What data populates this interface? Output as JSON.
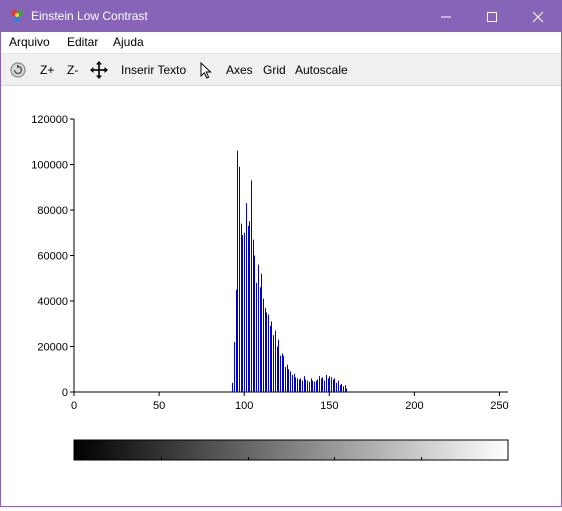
{
  "window": {
    "title": "Einstein Low Contrast",
    "accent_color": "#8764b8",
    "icons": [
      "app-logo-icon",
      "minimize-icon",
      "maximize-icon",
      "close-icon"
    ]
  },
  "menu": {
    "items": [
      "Arquivo",
      "Editar",
      "Ajuda"
    ]
  },
  "toolbar": {
    "reset_icon": "reset-view-icon",
    "zoom_in": "Z+",
    "zoom_out": "Z-",
    "pan_icon": "pan-move-icon",
    "insert_text": "Inserir Texto",
    "pointer_icon": "pointer-arrow-icon",
    "axes": "Axes",
    "grid": "Grid",
    "autoscale": "Autoscale"
  },
  "chart_data": {
    "type": "bar",
    "title": "",
    "xlabel": "",
    "ylabel": "",
    "xlim": [
      0,
      255
    ],
    "ylim": [
      0,
      120000
    ],
    "x_ticks": [
      0,
      50,
      100,
      150,
      200,
      250
    ],
    "y_ticks": [
      0,
      20000,
      40000,
      60000,
      80000,
      100000,
      120000
    ],
    "grid": false,
    "bar_color": "#0000cc",
    "colorbar": {
      "from": "#000000",
      "to": "#ffffff",
      "min": 0,
      "max": 255
    },
    "x": [
      93,
      94,
      95,
      96,
      97,
      98,
      99,
      100,
      101,
      102,
      103,
      104,
      105,
      106,
      107,
      108,
      109,
      110,
      111,
      112,
      113,
      114,
      115,
      116,
      117,
      118,
      119,
      120,
      121,
      122,
      123,
      124,
      125,
      126,
      127,
      128,
      129,
      130,
      131,
      132,
      133,
      134,
      135,
      136,
      137,
      138,
      139,
      140,
      141,
      142,
      143,
      144,
      145,
      146,
      147,
      148,
      149,
      150,
      151,
      152,
      153,
      154,
      155,
      156,
      157,
      158,
      159,
      160
    ],
    "values": [
      4000,
      22000,
      45000,
      106000,
      99000,
      74000,
      69000,
      70000,
      83000,
      73000,
      75000,
      93000,
      67000,
      60000,
      48000,
      56000,
      46000,
      52000,
      41000,
      37000,
      35000,
      34000,
      29000,
      31000,
      25000,
      27000,
      20000,
      23000,
      16000,
      17000,
      16000,
      11000,
      12000,
      10000,
      9000,
      7500,
      8000,
      6500,
      6000,
      5500,
      6000,
      5000,
      7000,
      5500,
      5000,
      4500,
      6000,
      5000,
      4500,
      5000,
      5500,
      7000,
      6000,
      6500,
      5000,
      7500,
      6000,
      7000,
      6500,
      5500,
      6000,
      4000,
      5000,
      3000,
      3500,
      2500,
      3000,
      1500
    ]
  }
}
